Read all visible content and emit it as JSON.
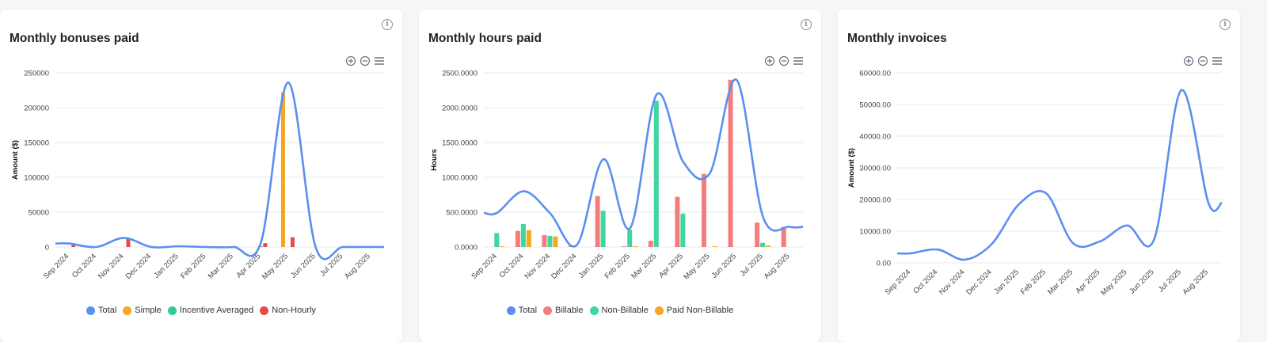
{
  "cards": [
    {
      "title": "Monthly bonuses paid",
      "info_icon": "info-icon",
      "toolbar": [
        "zoom-in-icon",
        "zoom-out-icon",
        "menu-icon"
      ]
    },
    {
      "title": "Monthly hours paid",
      "info_icon": "info-icon",
      "toolbar": [
        "zoom-in-icon",
        "zoom-out-icon",
        "menu-icon"
      ]
    },
    {
      "title": "Monthly invoices",
      "info_icon": "info-icon",
      "toolbar": [
        "zoom-in-icon",
        "zoom-out-icon",
        "menu-icon"
      ]
    }
  ],
  "chart_data": [
    {
      "type": "bar",
      "title": "Monthly bonuses paid",
      "xlabel": "",
      "ylabel": "Amount ($)",
      "ylim": [
        0,
        250000
      ],
      "yticks": [
        "0",
        "50000",
        "100000",
        "150000",
        "200000",
        "250000"
      ],
      "categories": [
        "Sep 2024",
        "Oct 2024",
        "Nov 2024",
        "Dec 2024",
        "Jan 2025",
        "Feb 2025",
        "Mar 2025",
        "Apr 2025",
        "May 2025",
        "Jun 2025",
        "Jul 2025",
        "Aug 2025"
      ],
      "series": [
        {
          "name": "Total",
          "kind": "line",
          "color": "#5b8ff0",
          "values": [
            5000,
            0,
            13000,
            0,
            1000,
            0,
            0,
            6000,
            236000,
            0,
            0,
            0
          ]
        },
        {
          "name": "Simple",
          "kind": "bar",
          "color": "#f5a623",
          "values": [
            0,
            0,
            0,
            0,
            0,
            0,
            0,
            0,
            222000,
            0,
            0,
            0
          ]
        },
        {
          "name": "Incentive Averaged",
          "kind": "bar",
          "color": "#2ecc8f",
          "values": [
            0,
            0,
            0,
            0,
            0,
            0,
            0,
            1500,
            0,
            0,
            0,
            0
          ]
        },
        {
          "name": "Non-Hourly",
          "kind": "bar",
          "color": "#e94b4b",
          "values": [
            4000,
            0,
            13000,
            0,
            0,
            0,
            0,
            5500,
            14000,
            0,
            0,
            0
          ]
        }
      ],
      "grid": true,
      "legend_position": "bottom"
    },
    {
      "type": "bar",
      "title": "Monthly hours paid",
      "xlabel": "",
      "ylabel": "Hours",
      "ylim": [
        0,
        2500
      ],
      "yticks": [
        "0.0000",
        "500.0000",
        "1000.0000",
        "1500.0000",
        "2000.0000",
        "2500.0000"
      ],
      "categories": [
        "Sep 2024",
        "Oct 2024",
        "Nov 2024",
        "Dec 2024",
        "Jan 2025",
        "Feb 2025",
        "Mar 2025",
        "Apr 2025",
        "May 2025",
        "Jun 2025",
        "Jul 2025",
        "Aug 2025"
      ],
      "series": [
        {
          "name": "Total",
          "kind": "line",
          "color": "#5b8ff0",
          "values": [
            490,
            800,
            480,
            30,
            1260,
            270,
            2190,
            1220,
            1060,
            2400,
            430,
            290
          ]
        },
        {
          "name": "Billable",
          "kind": "bar",
          "color": "#f47c7c",
          "values": [
            0,
            230,
            170,
            25,
            730,
            10,
            90,
            720,
            1050,
            2400,
            350,
            290
          ]
        },
        {
          "name": "Non-Billable",
          "kind": "bar",
          "color": "#3fd6a0",
          "values": [
            200,
            330,
            160,
            0,
            520,
            250,
            2100,
            480,
            0,
            0,
            60,
            0
          ]
        },
        {
          "name": "Paid Non-Billable",
          "kind": "bar",
          "color": "#f5a623",
          "values": [
            10,
            240,
            150,
            0,
            0,
            10,
            0,
            0,
            10,
            0,
            20,
            0
          ]
        }
      ],
      "grid": true,
      "legend_position": "bottom"
    },
    {
      "type": "line",
      "title": "Monthly invoices",
      "xlabel": "",
      "ylabel": "Amount ($)",
      "ylim": [
        0,
        60000
      ],
      "yticks": [
        "0.00",
        "10000.00",
        "20000.00",
        "30000.00",
        "40000.00",
        "50000.00",
        "60000.00"
      ],
      "categories": [
        "Sep 2024",
        "Oct 2024",
        "Nov 2024",
        "Dec 2024",
        "Jan 2025",
        "Feb 2025",
        "Mar 2025",
        "Apr 2025",
        "May 2025",
        "Jun 2025",
        "Jul 2025",
        "Aug 2025"
      ],
      "series": [
        {
          "kind": "line",
          "color": "#5b8ff0",
          "values": [
            3000,
            4200,
            1000,
            6000,
            18500,
            22000,
            6200,
            6800,
            11800,
            7500,
            54500,
            19000
          ]
        }
      ],
      "grid": true
    }
  ]
}
